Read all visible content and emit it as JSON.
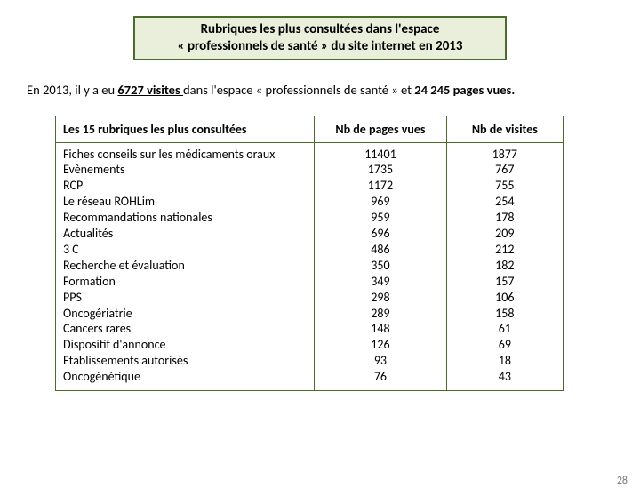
{
  "title": {
    "line1": "Rubriques les plus consultées dans l'espace",
    "line2": "« professionnels de santé » du site internet en 2013"
  },
  "intro": {
    "prefix": "En 2013, il y a eu ",
    "visits_count": "6727 visites ",
    "mid": "dans l'espace « professionnels de santé » et ",
    "pages_count": "24 245 pages vues.",
    "suffix": ""
  },
  "table": {
    "headers": {
      "rubrique": "Les 15 rubriques les plus consultées",
      "pages": "Nb de pages vues",
      "visites": "Nb de visites"
    },
    "rows": [
      {
        "label": "Fiches conseils sur les médicaments oraux",
        "pages": "11401",
        "visites": "1877"
      },
      {
        "label": "Evènements",
        "pages": "1735",
        "visites": "767"
      },
      {
        "label": "RCP",
        "pages": "1172",
        "visites": "755"
      },
      {
        "label": "Le réseau ROHLim",
        "pages": "969",
        "visites": "254"
      },
      {
        "label": "Recommandations nationales",
        "pages": "959",
        "visites": "178"
      },
      {
        "label": "Actualités",
        "pages": "696",
        "visites": "209"
      },
      {
        "label": "3 C",
        "pages": "486",
        "visites": "212"
      },
      {
        "label": "Recherche et évaluation",
        "pages": "350",
        "visites": "182"
      },
      {
        "label": "Formation",
        "pages": "349",
        "visites": "157"
      },
      {
        "label": "PPS",
        "pages": "298",
        "visites": "106"
      },
      {
        "label": "Oncogériatrie",
        "pages": "289",
        "visites": "158"
      },
      {
        "label": "Cancers rares",
        "pages": "148",
        "visites": "61"
      },
      {
        "label": "Dispositif d'annonce",
        "pages": "126",
        "visites": "69"
      },
      {
        "label": "Etablissements autorisés",
        "pages": "93",
        "visites": "18"
      },
      {
        "label": "Oncogénétique",
        "pages": "76",
        "visites": "43"
      }
    ]
  },
  "page_number": "28",
  "colors": {
    "border": "#4a6b2a",
    "title_bg": "#e9efdb",
    "text": "#000000",
    "page_num": "#7a7a7a",
    "background": "#ffffff"
  }
}
